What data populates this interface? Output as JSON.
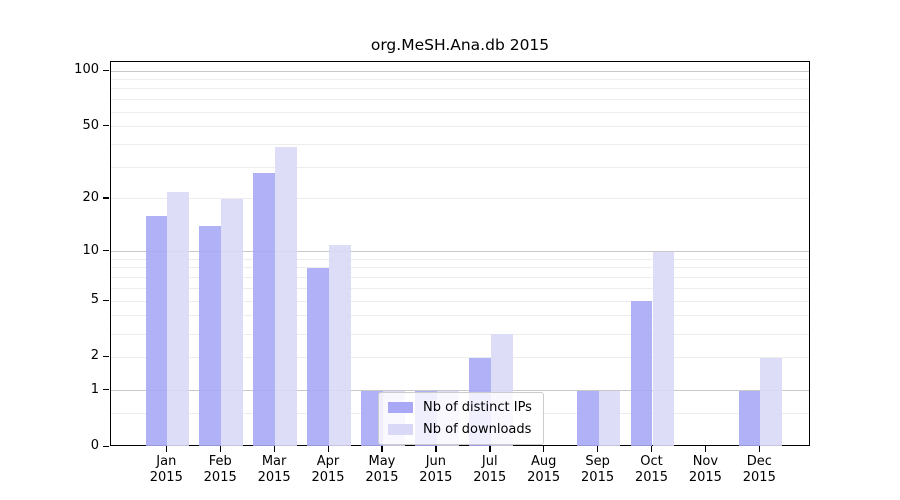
{
  "title": "org.MeSH.Ana.db 2015",
  "chart_data": {
    "type": "bar",
    "title": "org.MeSH.Ana.db 2015",
    "categories": [
      "Jan",
      "Feb",
      "Mar",
      "Apr",
      "May",
      "Jun",
      "Jul",
      "Aug",
      "Sep",
      "Oct",
      "Nov",
      "Dec"
    ],
    "x_year": "2015",
    "series": [
      {
        "name": "Nb of distinct IPs",
        "color": "#a8a8f6",
        "values": [
          16,
          14,
          28,
          8,
          1,
          1,
          2,
          0,
          1,
          5,
          0,
          1
        ]
      },
      {
        "name": "Nb of downloads",
        "color": "#d9d9f7",
        "values": [
          22,
          20,
          39,
          11,
          1,
          1,
          3,
          0,
          1,
          10,
          0,
          2
        ]
      }
    ],
    "yscale": "log1p",
    "ylim": [
      0,
      100
    ],
    "yticks": [
      0,
      1,
      2,
      5,
      10,
      20,
      50,
      100
    ],
    "major_gridlines": [
      1,
      10,
      100
    ],
    "minor_gridlines": [
      0.5,
      2,
      3,
      4,
      5,
      6,
      7,
      8,
      9,
      20,
      30,
      40,
      50,
      60,
      70,
      80,
      90
    ],
    "grid": true,
    "legend_position": "inside-bottom-center",
    "colors": {
      "major_grid": "#c8c8c8",
      "minor_grid": "#ededed",
      "axis": "#000000",
      "background": "#ffffff"
    }
  },
  "legend": {
    "items": [
      {
        "label": "Nb of distinct IPs",
        "color": "#a8a8f6"
      },
      {
        "label": "Nb of downloads",
        "color": "#d9d9f7"
      }
    ]
  }
}
